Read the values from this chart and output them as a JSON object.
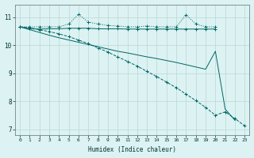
{
  "bg_color": "#ddf2f2",
  "grid_color": "#b8d8d8",
  "line_color": "#006666",
  "xlabel": "Humidex (Indice chaleur)",
  "xlim": [
    -0.5,
    23.5
  ],
  "ylim": [
    6.8,
    11.45
  ],
  "yticks": [
    7,
    8,
    9,
    10,
    11
  ],
  "xticks": [
    0,
    1,
    2,
    3,
    4,
    5,
    6,
    7,
    8,
    9,
    10,
    11,
    12,
    13,
    14,
    15,
    16,
    17,
    18,
    19,
    20,
    21,
    22,
    23
  ],
  "line1_x": [
    0,
    1,
    2,
    3,
    4,
    5,
    6,
    7,
    8,
    9,
    10,
    11,
    12,
    13,
    14,
    15,
    16,
    17,
    18,
    19,
    20
  ],
  "line1_y": [
    10.65,
    10.65,
    10.65,
    10.65,
    10.65,
    10.75,
    11.1,
    10.82,
    10.75,
    10.7,
    10.68,
    10.65,
    10.65,
    10.68,
    10.65,
    10.65,
    10.65,
    11.08,
    10.75,
    10.65,
    10.65
  ],
  "line2_x": [
    0,
    1,
    2,
    3,
    4,
    5,
    6,
    7,
    8,
    9,
    10,
    11,
    12,
    13,
    14,
    15,
    16,
    17,
    18,
    19,
    20
  ],
  "line2_y": [
    10.65,
    10.58,
    10.57,
    10.58,
    10.58,
    10.6,
    10.6,
    10.6,
    10.58,
    10.58,
    10.58,
    10.57,
    10.57,
    10.57,
    10.57,
    10.57,
    10.57,
    10.57,
    10.57,
    10.57,
    10.57
  ],
  "line3_x": [
    0,
    1,
    2,
    3,
    4,
    5,
    6,
    7,
    8,
    9,
    10,
    11,
    12,
    13,
    14,
    15,
    16,
    17,
    18,
    19,
    20,
    21,
    22
  ],
  "line3_y": [
    10.65,
    10.55,
    10.45,
    10.35,
    10.26,
    10.18,
    10.1,
    10.02,
    9.94,
    9.86,
    9.78,
    9.72,
    9.65,
    9.58,
    9.52,
    9.45,
    9.38,
    9.3,
    9.22,
    9.14,
    9.78,
    7.72,
    7.32
  ],
  "line4_x": [
    0,
    1,
    2,
    3,
    4,
    5,
    6,
    7,
    8,
    9,
    10,
    11,
    12,
    13,
    14,
    15,
    16,
    17,
    18,
    19,
    20,
    21,
    22,
    23
  ],
  "line4_y": [
    10.65,
    10.62,
    10.55,
    10.48,
    10.4,
    10.3,
    10.18,
    10.05,
    9.9,
    9.75,
    9.58,
    9.42,
    9.25,
    9.06,
    8.88,
    8.68,
    8.48,
    8.25,
    8.02,
    7.78,
    7.5,
    7.62,
    7.38,
    7.12
  ]
}
